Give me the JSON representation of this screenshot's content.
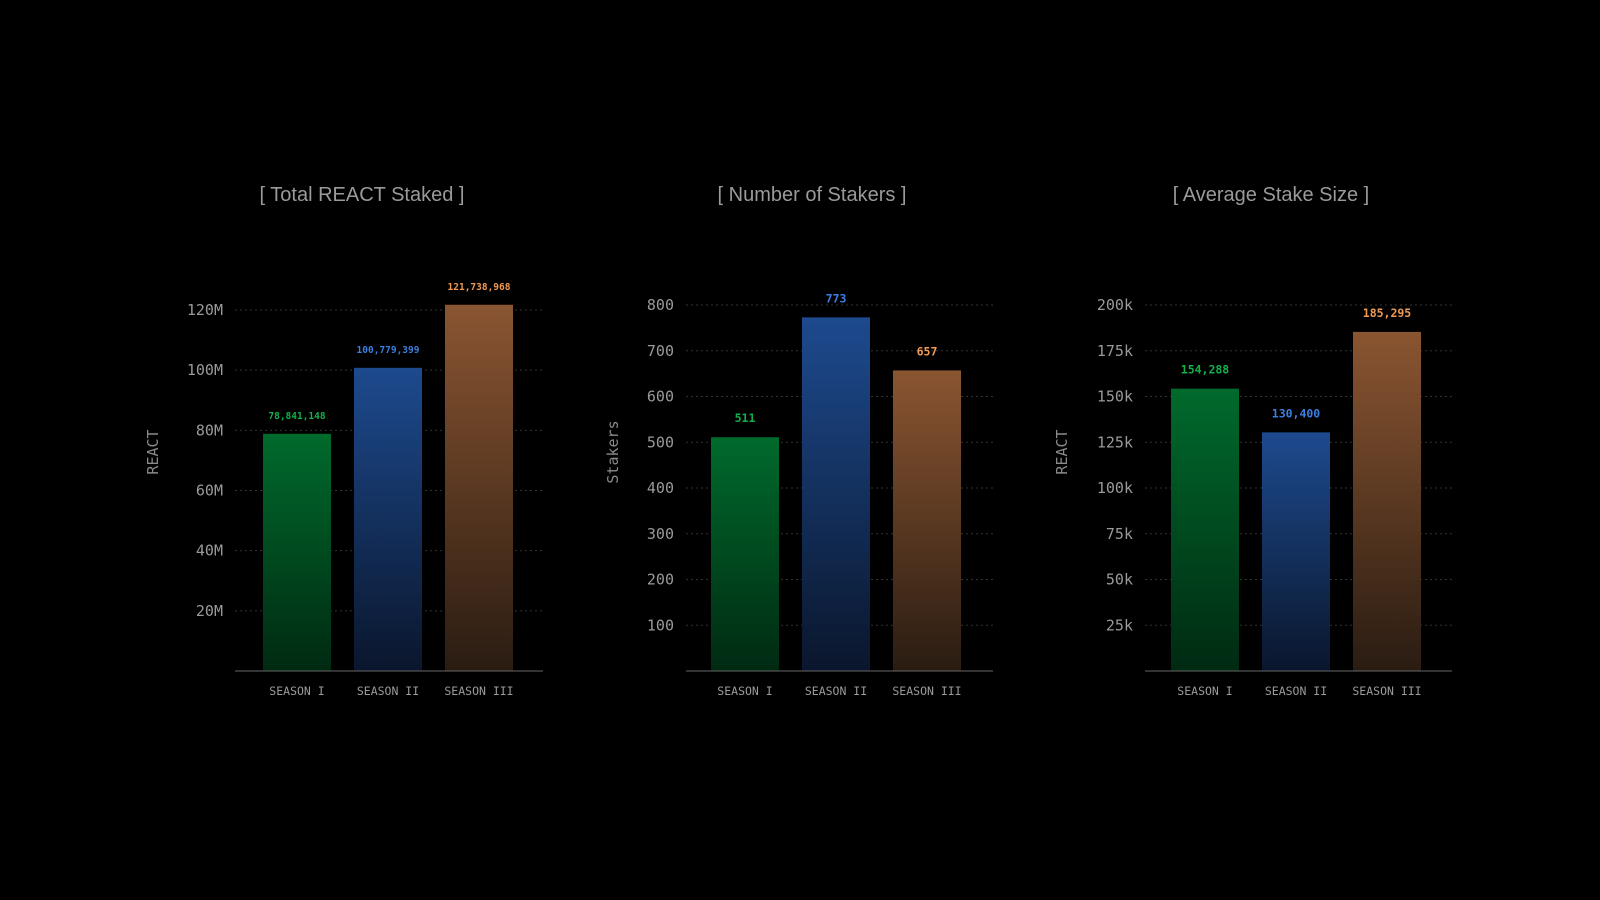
{
  "colors": {
    "green": "#12b04a",
    "blue": "#3d7fe0",
    "orange": "#f09a55"
  },
  "chart_data": [
    {
      "type": "bar",
      "title": "[ Total REACT Staked ]",
      "ylabel": "REACT",
      "xlabel": "",
      "categories": [
        "SEASON I",
        "SEASON II",
        "SEASON III"
      ],
      "values": [
        78841148,
        100779399,
        121738968
      ],
      "labels": [
        "78,841,148",
        "100,779,399",
        "121,738,968"
      ],
      "ylim": [
        0,
        120000000
      ],
      "yticks": [
        20000000,
        40000000,
        60000000,
        80000000,
        100000000,
        120000000
      ],
      "ytick_labels": [
        "20M",
        "40M",
        "60M",
        "80M",
        "100M",
        "120M"
      ],
      "grid": true
    },
    {
      "type": "bar",
      "title": "[ Number of Stakers ]",
      "ylabel": "Stakers",
      "xlabel": "",
      "categories": [
        "SEASON I",
        "SEASON II",
        "SEASON III"
      ],
      "values": [
        511,
        773,
        657
      ],
      "labels": [
        "511",
        "773",
        "657"
      ],
      "ylim": [
        0,
        800
      ],
      "yticks": [
        100,
        200,
        300,
        400,
        500,
        600,
        700,
        800
      ],
      "ytick_labels": [
        "100",
        "200",
        "300",
        "400",
        "500",
        "600",
        "700",
        "800"
      ],
      "grid": true
    },
    {
      "type": "bar",
      "title": "[ Average Stake Size ]",
      "ylabel": "REACT",
      "xlabel": "",
      "categories": [
        "SEASON I",
        "SEASON II",
        "SEASON III"
      ],
      "values": [
        154288,
        130400,
        185295
      ],
      "labels": [
        "154,288",
        "130,400",
        "185,295"
      ],
      "ylim": [
        0,
        200000
      ],
      "yticks": [
        25000,
        50000,
        75000,
        100000,
        125000,
        150000,
        175000,
        200000
      ],
      "ytick_labels": [
        "25k",
        "50k",
        "75k",
        "100k",
        "125k",
        "150k",
        "175k",
        "200k"
      ],
      "grid": true
    }
  ]
}
